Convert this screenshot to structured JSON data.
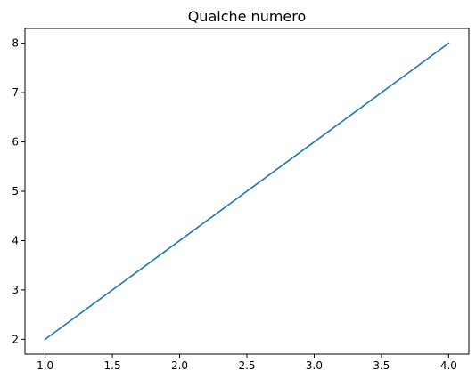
{
  "chart_data": {
    "type": "line",
    "title": "Qualche numero",
    "xlabel": "",
    "ylabel": "",
    "x": [
      1,
      2,
      3,
      4
    ],
    "series": [
      {
        "values": [
          2,
          4,
          6,
          8
        ],
        "color": "#1f77b4"
      }
    ],
    "xlim": [
      0.85,
      4.15
    ],
    "ylim": [
      1.7,
      8.3
    ],
    "xticks": [
      1.0,
      1.5,
      2.0,
      2.5,
      3.0,
      3.5,
      4.0
    ],
    "xtick_labels": [
      "1.0",
      "1.5",
      "2.0",
      "2.5",
      "3.0",
      "3.5",
      "4.0"
    ],
    "yticks": [
      2,
      3,
      4,
      5,
      6,
      7,
      8
    ],
    "ytick_labels": [
      "2",
      "3",
      "4",
      "5",
      "6",
      "7",
      "8"
    ],
    "grid": false,
    "legend": "none"
  }
}
